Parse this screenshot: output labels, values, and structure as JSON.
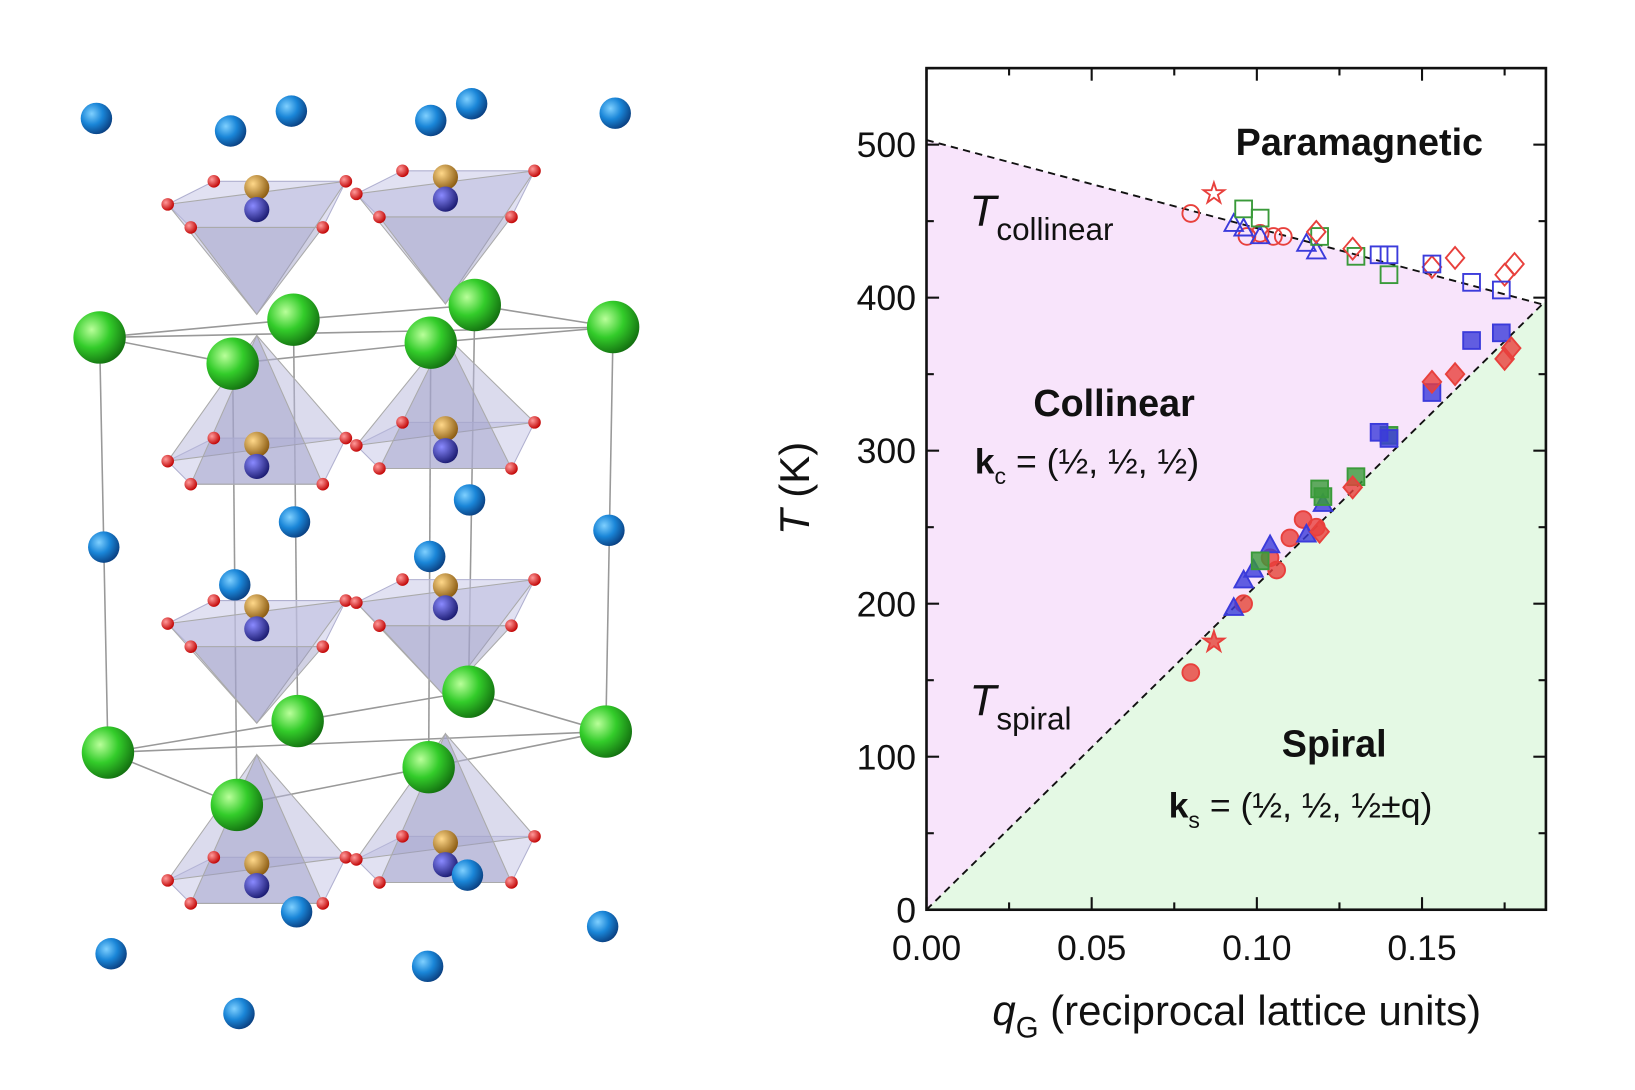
{
  "chart_data": {
    "type": "scatter",
    "xlim": [
      0,
      0.1875
    ],
    "ylim": [
      0,
      550
    ],
    "xticks": [
      {
        "value": 0,
        "label": "0.00"
      },
      {
        "value": 0.05,
        "label": "0.05"
      },
      {
        "value": 0.1,
        "label": "0.10"
      },
      {
        "value": 0.15,
        "label": "0.15"
      }
    ],
    "yticks": [
      0,
      100,
      200,
      300,
      400,
      500
    ],
    "xminor": [
      0.025,
      0.075,
      0.125,
      0.175
    ],
    "yminor": [
      50,
      150,
      250,
      350,
      450,
      550
    ],
    "xlabel": {
      "symbol": "q",
      "sub": "G",
      "rest": " (reciprocal lattice units)"
    },
    "ylabel": {
      "symbol": "T",
      "rest": " (K)"
    },
    "region_labels": {
      "paramagnetic": "Paramagnetic",
      "collinear": "Collinear",
      "spiral": "Spiral"
    },
    "T_collinear": {
      "symbol": "T",
      "sub": "collinear"
    },
    "T_spiral": {
      "symbol": "T",
      "sub": "spiral"
    },
    "k_c": {
      "symbol": "k",
      "sub": "c",
      "rest": " = (½, ½, ½)"
    },
    "k_s": {
      "symbol": "k",
      "sub": "s",
      "rest": " = (½, ½, ½±q)"
    },
    "boundaries": [
      {
        "x": [
          0,
          0.1875
        ],
        "y": [
          503,
          395
        ]
      },
      {
        "x": [
          0,
          0.1875
        ],
        "y": [
          0,
          398
        ]
      }
    ],
    "series": [
      {
        "color": "#e8403c",
        "marker": "circle",
        "filled": false,
        "x": [
          0.08,
          0.097,
          0.101,
          0.105,
          0.108
        ],
        "values": [
          455,
          440,
          442,
          440,
          440
        ]
      },
      {
        "color": "#3b3bdb",
        "marker": "triangle",
        "filled": false,
        "x": [
          0.093,
          0.096,
          0.101,
          0.115,
          0.118
        ],
        "values": [
          448,
          445,
          440,
          435,
          430
        ]
      },
      {
        "color": "#3a9a3a",
        "marker": "square",
        "filled": false,
        "x": [
          0.096,
          0.101,
          0.119,
          0.13,
          0.14
        ],
        "values": [
          458,
          452,
          440,
          427,
          415
        ]
      },
      {
        "color": "#e8403c",
        "marker": "diamond",
        "filled": false,
        "x": [
          0.118,
          0.129,
          0.153,
          0.16,
          0.175,
          0.178
        ],
        "values": [
          443,
          432,
          420,
          426,
          415,
          422
        ]
      },
      {
        "color": "#3b3bdb",
        "marker": "square",
        "filled": false,
        "x": [
          0.137,
          0.14,
          0.153,
          0.165,
          0.174
        ],
        "values": [
          428,
          428,
          422,
          410,
          405
        ]
      },
      {
        "color": "#e8403c",
        "marker": "star",
        "filled": false,
        "x": [
          0.087
        ],
        "values": [
          468
        ]
      },
      {
        "color": "#e8403c",
        "marker": "circle",
        "filled": true,
        "x": [
          0.08,
          0.096,
          0.104,
          0.106,
          0.11,
          0.114,
          0.118
        ],
        "values": [
          155,
          200,
          230,
          222,
          243,
          255,
          250
        ]
      },
      {
        "color": "#3b3bdb",
        "marker": "triangle",
        "filled": true,
        "x": [
          0.093,
          0.096,
          0.099,
          0.104,
          0.115,
          0.12
        ],
        "values": [
          197,
          215,
          222,
          238,
          245,
          265
        ]
      },
      {
        "color": "#3a9a3a",
        "marker": "square",
        "filled": true,
        "x": [
          0.101,
          0.119,
          0.12,
          0.13,
          0.14
        ],
        "values": [
          228,
          275,
          270,
          283,
          310
        ]
      },
      {
        "color": "#3b3bdb",
        "marker": "square",
        "filled": true,
        "x": [
          0.137,
          0.14,
          0.153,
          0.165,
          0.174
        ],
        "values": [
          312,
          308,
          338,
          372,
          377
        ]
      },
      {
        "color": "#e8403c",
        "marker": "diamond",
        "filled": true,
        "x": [
          0.119,
          0.129,
          0.153,
          0.16,
          0.175,
          0.177
        ],
        "values": [
          247,
          276,
          345,
          350,
          360,
          367
        ]
      },
      {
        "color": "#e8403c",
        "marker": "star",
        "filled": true,
        "x": [
          0.087
        ],
        "values": [
          175
        ]
      }
    ]
  }
}
